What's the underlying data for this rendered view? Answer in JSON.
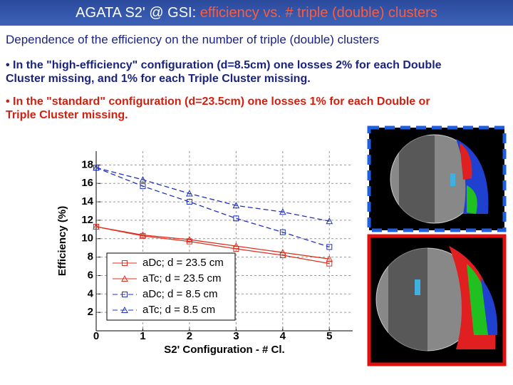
{
  "slide": {
    "title": "AGATA S2' @ GSI: ",
    "title_highlight": "efficiency vs. # triple (double) clusters",
    "subtitle": "Dependence of the efficiency on the number of triple (double) clusters",
    "bullets": [
      "• In the \"high-efficiency\" configuration (d=8.5cm) one losses 2% for each Double Cluster missing, and 1% for each Triple Cluster missing.",
      "• In the \"standard\" configuration (d=23.5cm) one losses 1% for each Double or Triple Cluster missing."
    ]
  },
  "chart_data": {
    "type": "line",
    "xlabel": "S2' Configuration - # Cl.",
    "ylabel": "Efficiency (%)",
    "x": [
      0,
      1,
      2,
      3,
      4,
      5
    ],
    "series": [
      {
        "name": "aDc; d = 23.5 cm",
        "color": "#e03020",
        "marker": "square",
        "linestyle": "solid",
        "values": [
          11.3,
          10.3,
          9.7,
          8.9,
          8.2,
          7.3
        ]
      },
      {
        "name": "aTc; d = 23.5 cm",
        "color": "#e03020",
        "marker": "triangle",
        "linestyle": "solid",
        "values": [
          11.3,
          10.4,
          9.9,
          9.2,
          8.5,
          7.8
        ]
      },
      {
        "name": "aDc; d = 8.5 cm",
        "color": "#2030c0",
        "marker": "square",
        "linestyle": "dashed",
        "values": [
          17.7,
          15.7,
          14.0,
          12.2,
          10.7,
          9.1
        ]
      },
      {
        "name": "aTc; d = 8.5 cm",
        "color": "#2030c0",
        "marker": "triangle",
        "linestyle": "dashed",
        "values": [
          17.7,
          16.4,
          14.9,
          13.6,
          12.9,
          11.9
        ]
      }
    ],
    "xlim": [
      0,
      5.5
    ],
    "xticks": [
      0,
      1,
      2,
      3,
      4,
      5
    ],
    "ylim": [
      0,
      19.5
    ],
    "yticks": [
      2,
      4,
      6,
      8,
      10,
      12,
      14,
      16,
      18
    ],
    "grid": true,
    "legend": "lower left"
  }
}
